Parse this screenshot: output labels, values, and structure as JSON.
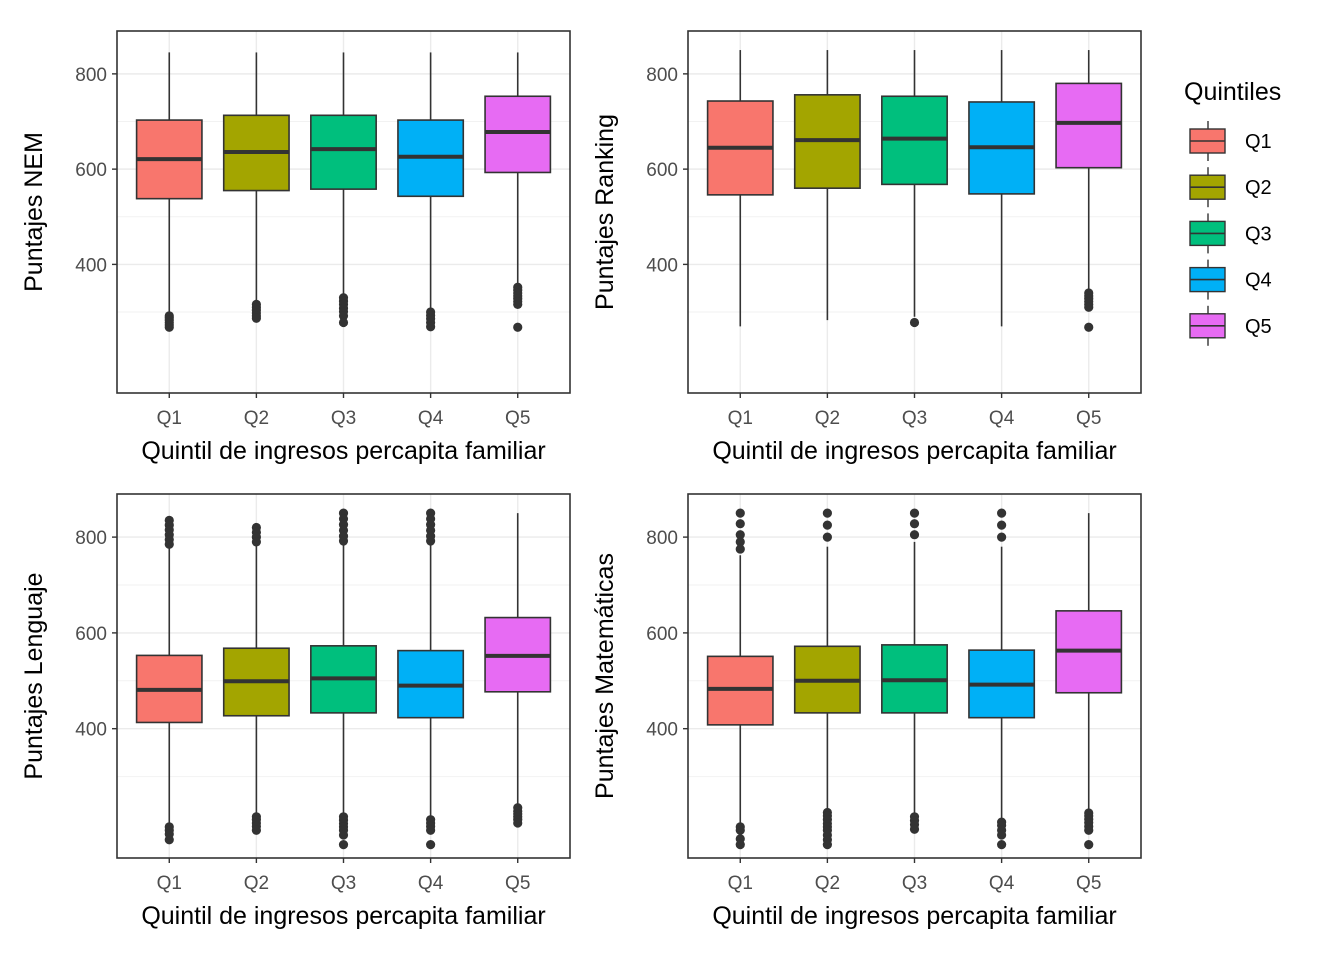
{
  "legend": {
    "title": "Quintiles",
    "items": [
      {
        "label": "Q1",
        "color": "#F8766D"
      },
      {
        "label": "Q2",
        "color": "#A3A500"
      },
      {
        "label": "Q3",
        "color": "#00BF7D"
      },
      {
        "label": "Q4",
        "color": "#00B0F6"
      },
      {
        "label": "Q5",
        "color": "#E76BF3"
      }
    ]
  },
  "chart_data": [
    {
      "type": "boxplot",
      "xlabel": "Quintil de ingresos percapita familiar",
      "ylabel": "Puntajes NEM",
      "categories": [
        "Q1",
        "Q2",
        "Q3",
        "Q4",
        "Q5"
      ],
      "ylim": [
        130,
        890
      ],
      "yticks": [
        400,
        600,
        800
      ],
      "grid": true,
      "boxes": [
        {
          "min": 300,
          "q1": 538,
          "median": 621,
          "q3": 703,
          "max": 845,
          "outliers": [
            292,
            288,
            283,
            278,
            273,
            268
          ]
        },
        {
          "min": 322,
          "q1": 555,
          "median": 636,
          "q3": 713,
          "max": 845,
          "outliers": [
            316,
            310,
            304,
            298,
            292,
            287
          ]
        },
        {
          "min": 336,
          "q1": 558,
          "median": 642,
          "q3": 713,
          "max": 845,
          "outliers": [
            330,
            323,
            316,
            308,
            301,
            292,
            278
          ]
        },
        {
          "min": 305,
          "q1": 543,
          "median": 626,
          "q3": 703,
          "max": 845,
          "outliers": [
            300,
            293,
            286,
            278,
            269
          ]
        },
        {
          "min": 358,
          "q1": 593,
          "median": 678,
          "q3": 753,
          "max": 845,
          "outliers": [
            352,
            346,
            340,
            334,
            328,
            322,
            316,
            268
          ]
        }
      ]
    },
    {
      "type": "boxplot",
      "xlabel": "Quintil de ingresos percapita familiar",
      "ylabel": "Puntajes Ranking",
      "categories": [
        "Q1",
        "Q2",
        "Q3",
        "Q4",
        "Q5"
      ],
      "ylim": [
        130,
        890
      ],
      "yticks": [
        400,
        600,
        800
      ],
      "grid": true,
      "boxes": [
        {
          "min": 270,
          "q1": 546,
          "median": 645,
          "q3": 743,
          "max": 850,
          "outliers": []
        },
        {
          "min": 283,
          "q1": 560,
          "median": 661,
          "q3": 756,
          "max": 850,
          "outliers": []
        },
        {
          "min": 290,
          "q1": 568,
          "median": 664,
          "q3": 753,
          "max": 850,
          "outliers": [
            278
          ]
        },
        {
          "min": 270,
          "q1": 548,
          "median": 646,
          "q3": 741,
          "max": 850,
          "outliers": []
        },
        {
          "min": 348,
          "q1": 603,
          "median": 697,
          "q3": 780,
          "max": 850,
          "outliers": [
            340,
            334,
            328,
            322,
            316,
            310,
            268
          ]
        }
      ]
    },
    {
      "type": "boxplot",
      "xlabel": "Quintil de ingresos percapita familiar",
      "ylabel": "Puntajes Lenguaje",
      "categories": [
        "Q1",
        "Q2",
        "Q3",
        "Q4",
        "Q5"
      ],
      "ylim": [
        130,
        890
      ],
      "yticks": [
        400,
        600,
        800
      ],
      "grid": true,
      "boxes": [
        {
          "min": 201,
          "q1": 413,
          "median": 481,
          "q3": 553,
          "max": 780,
          "outliers": [
            835,
            825,
            815,
            805,
            795,
            785,
            195,
            188,
            180,
            168
          ]
        },
        {
          "min": 222,
          "q1": 427,
          "median": 499,
          "q3": 568,
          "max": 783,
          "outliers": [
            820,
            810,
            800,
            790,
            216,
            210,
            203,
            196,
            188
          ]
        },
        {
          "min": 222,
          "q1": 433,
          "median": 505,
          "q3": 573,
          "max": 785,
          "outliers": [
            850,
            838,
            826,
            814,
            802,
            792,
            216,
            209,
            202,
            195,
            188,
            178,
            158
          ]
        },
        {
          "min": 215,
          "q1": 423,
          "median": 490,
          "q3": 563,
          "max": 785,
          "outliers": [
            850,
            838,
            826,
            814,
            802,
            792,
            210,
            203,
            196,
            188,
            158
          ]
        },
        {
          "min": 241,
          "q1": 477,
          "median": 552,
          "q3": 632,
          "max": 850,
          "outliers": [
            235,
            228,
            222,
            216,
            210,
            203
          ]
        }
      ]
    },
    {
      "type": "boxplot",
      "xlabel": "Quintil de ingresos percapita familiar",
      "ylabel": "Puntajes Matemáticas",
      "categories": [
        "Q1",
        "Q2",
        "Q3",
        "Q4",
        "Q5"
      ],
      "ylim": [
        130,
        890
      ],
      "yticks": [
        400,
        600,
        800
      ],
      "grid": true,
      "boxes": [
        {
          "min": 201,
          "q1": 408,
          "median": 483,
          "q3": 551,
          "max": 762,
          "outliers": [
            850,
            828,
            805,
            790,
            775,
            195,
            188,
            170,
            158
          ]
        },
        {
          "min": 230,
          "q1": 433,
          "median": 500,
          "q3": 572,
          "max": 780,
          "outliers": [
            850,
            825,
            800,
            225,
            218,
            210,
            202,
            195,
            188,
            178,
            168,
            158
          ]
        },
        {
          "min": 222,
          "q1": 433,
          "median": 501,
          "q3": 575,
          "max": 790,
          "outliers": [
            850,
            828,
            805,
            216,
            208,
            200,
            190
          ]
        },
        {
          "min": 210,
          "q1": 423,
          "median": 492,
          "q3": 564,
          "max": 780,
          "outliers": [
            850,
            825,
            800,
            205,
            198,
            188,
            178,
            158
          ]
        },
        {
          "min": 230,
          "q1": 475,
          "median": 563,
          "q3": 646,
          "max": 850,
          "outliers": [
            224,
            218,
            211,
            204,
            196,
            188,
            158
          ]
        }
      ]
    }
  ]
}
